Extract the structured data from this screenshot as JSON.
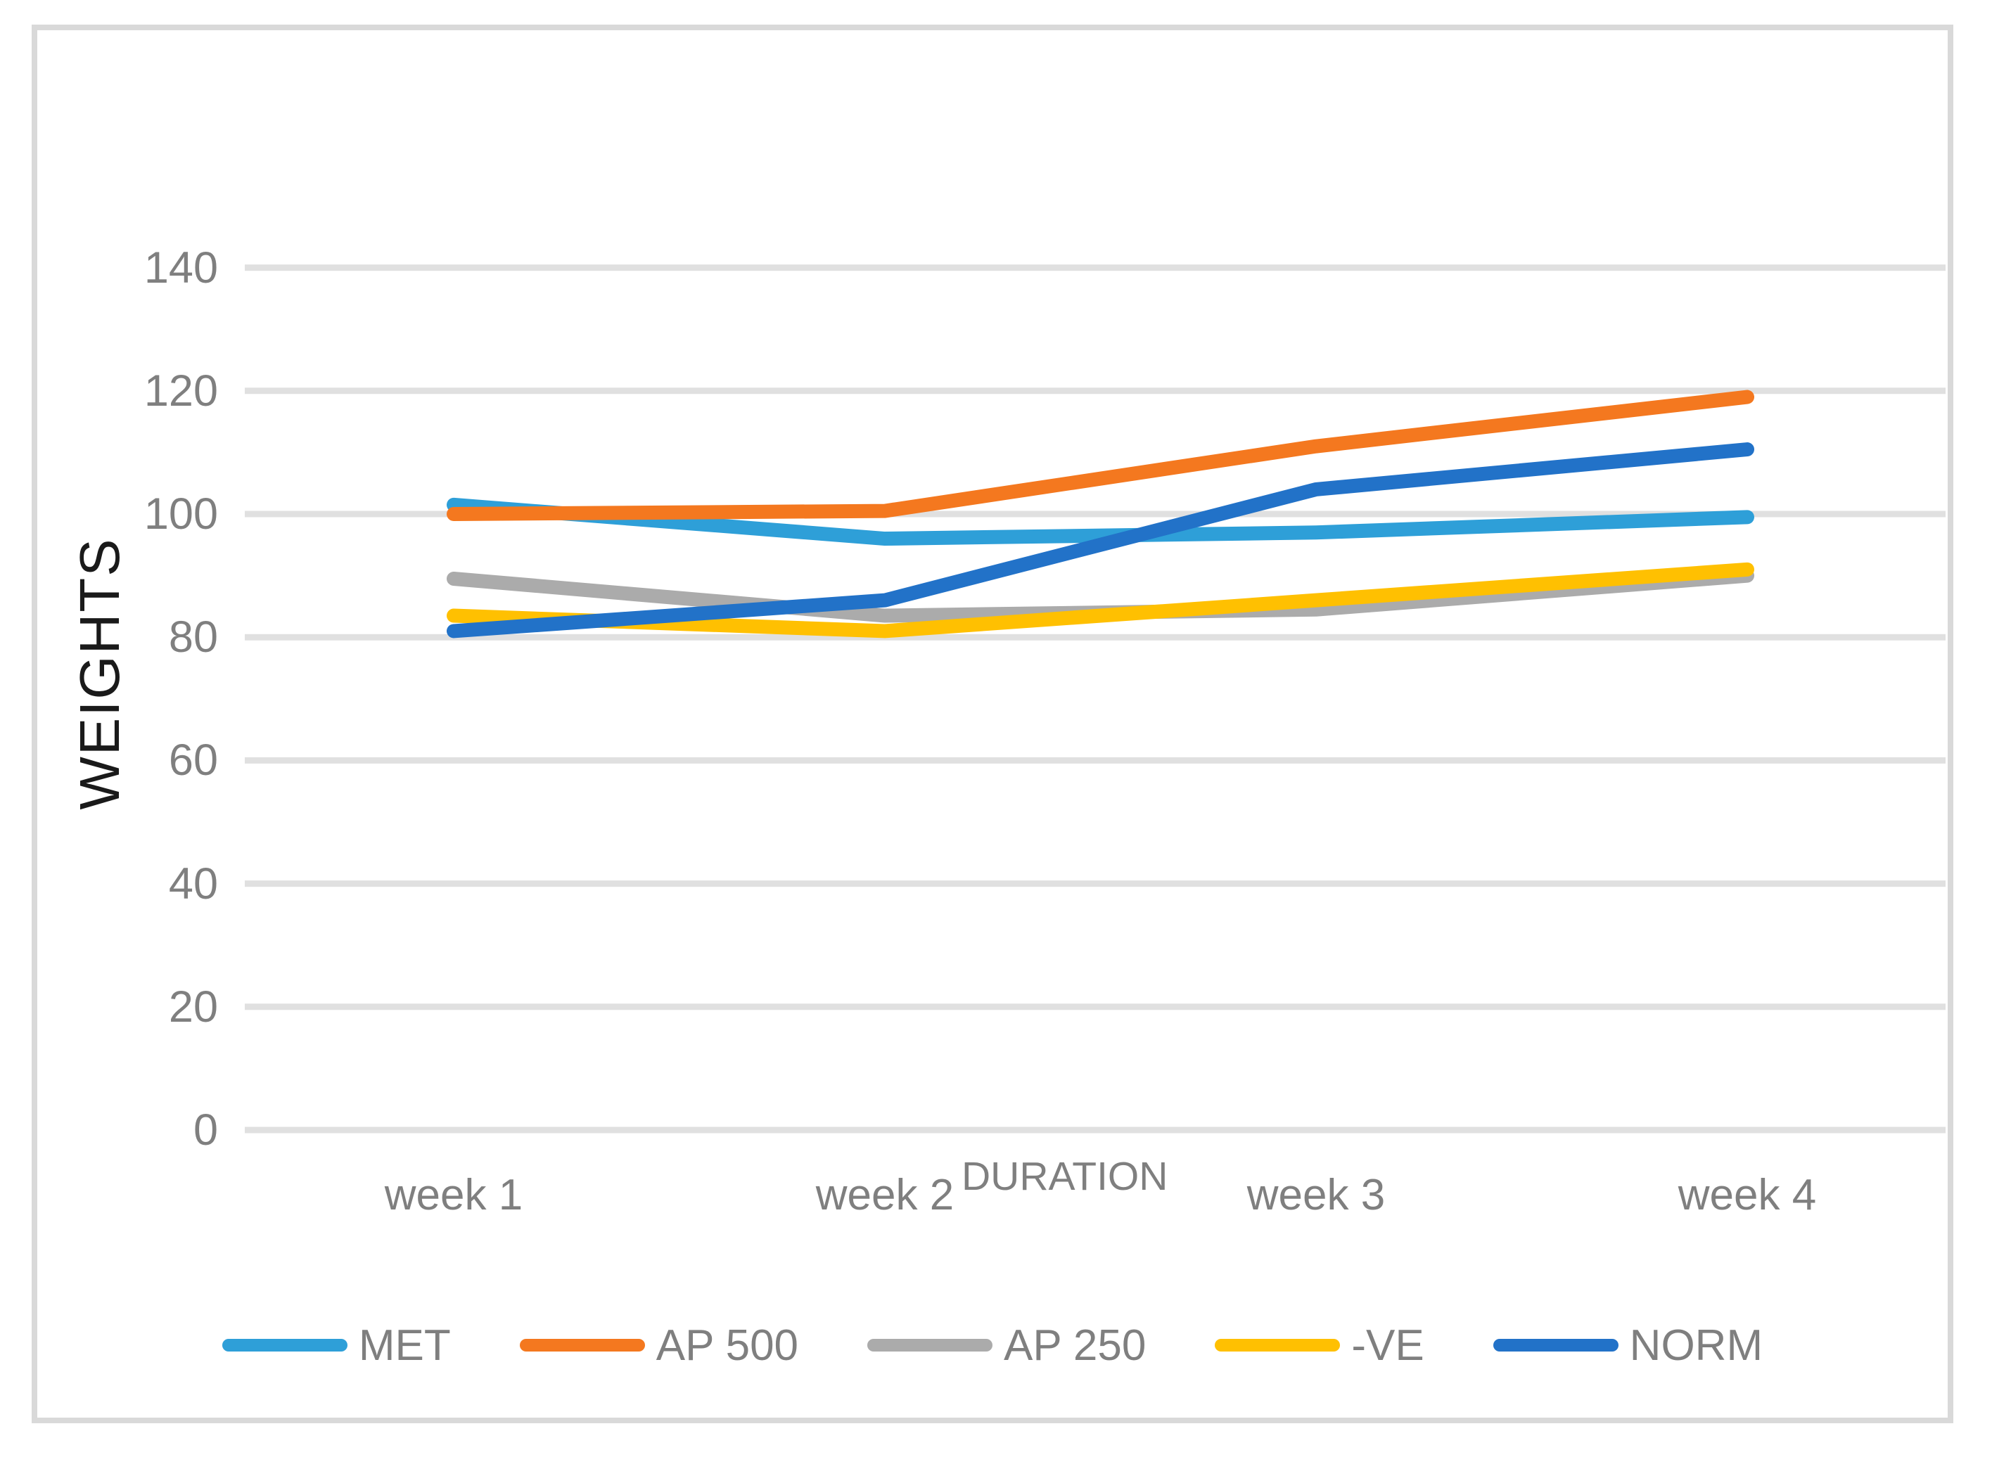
{
  "chart_data": {
    "type": "line",
    "title": "",
    "categories": [
      "week 1",
      "week 2",
      "week 3",
      "week 4"
    ],
    "series": [
      {
        "name": "MET",
        "color": "#2E9FD8",
        "values": [
          101.5,
          96,
          97,
          99.5
        ]
      },
      {
        "name": "AP 500",
        "color": "#F4781F",
        "values": [
          100,
          100.5,
          111,
          119
        ]
      },
      {
        "name": "AP 250",
        "color": "#ABABAB",
        "values": [
          89.5,
          83.5,
          84.5,
          90
        ]
      },
      {
        "name": "-VE",
        "color": "#FFC001",
        "values": [
          83.5,
          81,
          86,
          91
        ]
      },
      {
        "name": "NORM",
        "color": "#2272C8",
        "values": [
          81,
          86,
          104,
          110.5
        ]
      }
    ],
    "xlabel": "DURATION",
    "ylabel": "WEIGHTS",
    "ylim": [
      0,
      140
    ],
    "ytick_step": 20,
    "yticks": [
      "140",
      "120",
      "100",
      "80",
      "60",
      "40",
      "20",
      "0"
    ],
    "grid": "horizontal",
    "legend_position": "bottom"
  },
  "colors": {
    "gridline": "#E0E0E0",
    "frame_border": "#D9D9D9",
    "axis_label": "#7F7F7F",
    "axis_title": "#1A1A1A",
    "background": "#FFFFFF"
  }
}
